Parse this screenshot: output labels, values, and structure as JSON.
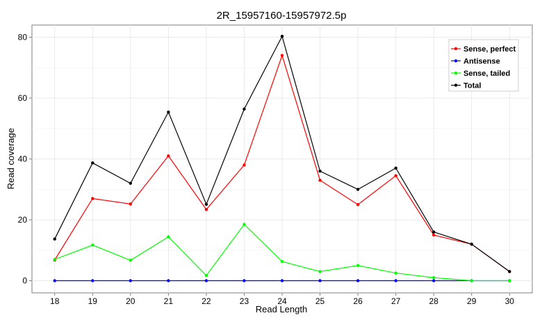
{
  "chart_data": {
    "type": "line",
    "title": "2R_15957160-15957972.5p",
    "xlabel": "Read Length",
    "ylabel": "Read coverage",
    "x": [
      18,
      19,
      20,
      21,
      22,
      23,
      24,
      25,
      26,
      27,
      28,
      29,
      30
    ],
    "xlim": [
      17.4,
      30.6
    ],
    "ylim": [
      -4,
      84
    ],
    "yticks": [
      0,
      20,
      40,
      60,
      80
    ],
    "grid": true,
    "legend": "top-right",
    "series": [
      {
        "name": "Sense, perfect",
        "color": "#ff0000",
        "values": [
          6.8,
          27,
          25.2,
          41,
          23.4,
          38,
          74,
          33,
          25,
          34.5,
          15,
          12,
          3
        ]
      },
      {
        "name": "Antisense",
        "color": "#0000ff",
        "values": [
          0,
          0,
          0,
          0,
          0,
          0,
          0,
          0,
          0,
          0,
          0,
          0,
          0
        ]
      },
      {
        "name": "Sense, tailed",
        "color": "#00ff00",
        "values": [
          7,
          11.7,
          6.7,
          14.4,
          1.7,
          18.5,
          6.3,
          3,
          5,
          2.5,
          1,
          0,
          0
        ]
      },
      {
        "name": "Total",
        "color": "#000000",
        "values": [
          13.7,
          38.7,
          32,
          55.4,
          25.1,
          56.4,
          80.3,
          36,
          30,
          37,
          16,
          12,
          3
        ]
      }
    ]
  }
}
